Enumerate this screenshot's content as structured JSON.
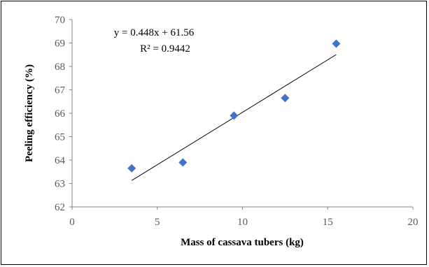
{
  "chart_data": {
    "type": "scatter",
    "title": "",
    "xlabel": "Mass of cassava tubers (kg)",
    "ylabel": "Peeling efficiency (%)",
    "xlim": [
      0,
      20
    ],
    "ylim": [
      62,
      70
    ],
    "x_ticks": [
      "0",
      "5",
      "10",
      "15",
      "20"
    ],
    "y_ticks": [
      "62",
      "63",
      "64",
      "65",
      "66",
      "67",
      "68",
      "69",
      "70"
    ],
    "grid": false,
    "legend": "none",
    "series": [
      {
        "marker": "diamond",
        "color": "#4472C4",
        "points": [
          {
            "x": 3.5,
            "y": 63.65
          },
          {
            "x": 6.5,
            "y": 63.9
          },
          {
            "x": 9.5,
            "y": 65.9
          },
          {
            "x": 12.5,
            "y": 66.65
          },
          {
            "x": 15.5,
            "y": 68.97
          }
        ]
      }
    ],
    "trendline": {
      "type": "linear",
      "slope": 0.448,
      "intercept": 61.56,
      "x_range": [
        3.5,
        15.5
      ],
      "color": "#000000"
    },
    "annotations": {
      "equation": "y = 0.448x + 61.56",
      "r_squared": "R² = 0.9442"
    }
  }
}
